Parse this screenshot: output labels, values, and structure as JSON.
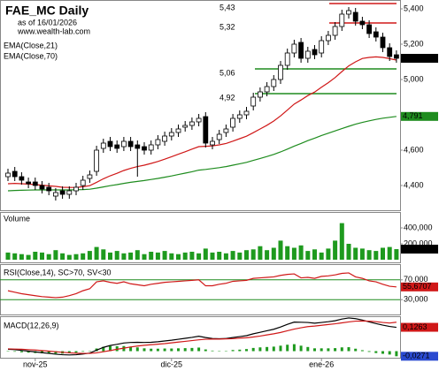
{
  "chart_data": [
    {
      "type": "candlestick",
      "title": "FAE_MC Daily",
      "subtitle": "as of 16/01/2026",
      "source": "www.wealth-lab.com",
      "categories": [
        null,
        null,
        null,
        null,
        "nov-25",
        null,
        null,
        null,
        null,
        null,
        null,
        null,
        null,
        null,
        null,
        null,
        null,
        null,
        null,
        null,
        null,
        null,
        null,
        null,
        "dic-25",
        null,
        null,
        null,
        null,
        null,
        null,
        null,
        null,
        null,
        null,
        null,
        null,
        null,
        null,
        null,
        null,
        null,
        null,
        null,
        null,
        null,
        "ene-26",
        null,
        null,
        null,
        null,
        null,
        null,
        null,
        null,
        null,
        null,
        null
      ],
      "open": [
        4450,
        4480,
        4450,
        4420,
        4420,
        4400,
        4390,
        4340,
        4370,
        4350,
        4370,
        4400,
        4440,
        4480,
        4610,
        4650,
        4630,
        4620,
        4650,
        4630,
        4620,
        4600,
        4630,
        4650,
        4680,
        4700,
        4730,
        4740,
        4760,
        4790,
        4630,
        4660,
        4700,
        4730,
        4780,
        4800,
        4850,
        4900,
        4930,
        4960,
        5000,
        5080,
        5150,
        5210,
        5120,
        5170,
        5150,
        5220,
        5250,
        5300,
        5370,
        5380,
        5330,
        5310,
        5270,
        5240,
        5180,
        5140
      ],
      "high": [
        4495,
        4505,
        4475,
        4445,
        4445,
        4425,
        4415,
        4385,
        4395,
        4395,
        4415,
        4455,
        4485,
        4625,
        4665,
        4675,
        4655,
        4675,
        4675,
        4655,
        4645,
        4655,
        4685,
        4705,
        4725,
        4745,
        4765,
        4785,
        4805,
        4815,
        4675,
        4715,
        4745,
        4805,
        4825,
        4845,
        4925,
        4955,
        4985,
        5025,
        5105,
        5175,
        5225,
        5235,
        5185,
        5195,
        5245,
        5275,
        5325,
        5395,
        5410,
        5405,
        5355,
        5335,
        5295,
        5265,
        5205,
        5165
      ],
      "low": [
        4425,
        4425,
        4405,
        4385,
        4375,
        4355,
        4345,
        4315,
        4325,
        4325,
        4345,
        4375,
        4415,
        4455,
        4585,
        4595,
        4585,
        4595,
        4595,
        4450,
        4575,
        4575,
        4605,
        4625,
        4655,
        4675,
        4705,
        4715,
        4735,
        4615,
        4605,
        4635,
        4675,
        4705,
        4755,
        4775,
        4825,
        4875,
        4905,
        4935,
        4975,
        5055,
        5125,
        5095,
        5095,
        5115,
        5125,
        5195,
        5225,
        5275,
        5345,
        5305,
        5285,
        5235,
        5215,
        5155,
        5105,
        5095
      ],
      "close": [
        4470,
        4450,
        4430,
        4410,
        4400,
        4380,
        4370,
        4360,
        4350,
        4370,
        4390,
        4430,
        4460,
        4600,
        4640,
        4620,
        4610,
        4650,
        4620,
        4610,
        4600,
        4630,
        4660,
        4680,
        4700,
        4720,
        4740,
        4760,
        4780,
        4640,
        4650,
        4690,
        4720,
        4780,
        4800,
        4820,
        4900,
        4930,
        4960,
        5000,
        5080,
        5150,
        5200,
        5120,
        5160,
        5140,
        5220,
        5250,
        5300,
        5370,
        5390,
        5330,
        5310,
        5260,
        5240,
        5180,
        5130,
        5120
      ],
      "last_close": {
        "value": 5120,
        "label": "5,120"
      },
      "ylim": [
        4260,
        5450
      ],
      "yticks": [
        {
          "value": 4400,
          "label": "4,400"
        },
        {
          "value": 4600,
          "label": "4,600"
        },
        {
          "value": 5000,
          "label": "5,000"
        },
        {
          "value": 5200,
          "label": "5,200"
        },
        {
          "value": 5400,
          "label": "5,400"
        }
      ],
      "overlays": [
        {
          "name": "EMA(Close,21)",
          "color": "#d01818",
          "values": [
            4410,
            4412,
            4410,
            4408,
            4405,
            4402,
            4398,
            4395,
            4390,
            4389,
            4389,
            4393,
            4399,
            4418,
            4438,
            4455,
            4469,
            4485,
            4497,
            4507,
            4515,
            4525,
            4536,
            4549,
            4563,
            4577,
            4591,
            4606,
            4620,
            4622,
            4624,
            4630,
            4638,
            4651,
            4665,
            4679,
            4699,
            4720,
            4741,
            4765,
            4794,
            4827,
            4861,
            4884,
            4909,
            4929,
            4956,
            4982,
            5011,
            5045,
            5077,
            5100,
            5119,
            5125,
            5128,
            5125,
            5118,
            5110
          ]
        },
        {
          "name": "EMA(Close,70)",
          "color": "#1e8c1e",
          "values": [
            4370,
            4372,
            4373,
            4374,
            4375,
            4375,
            4375,
            4375,
            4375,
            4375,
            4376,
            4377,
            4379,
            4385,
            4392,
            4399,
            4405,
            4412,
            4418,
            4423,
            4428,
            4434,
            4440,
            4447,
            4454,
            4462,
            4470,
            4478,
            4487,
            4491,
            4496,
            4501,
            4507,
            4515,
            4523,
            4531,
            4542,
            4553,
            4564,
            4576,
            4590,
            4606,
            4623,
            4638,
            4654,
            4668,
            4683,
            4696,
            4709,
            4722,
            4735,
            4747,
            4757,
            4766,
            4774,
            4781,
            4786,
            4791
          ],
          "last": {
            "value": 4791,
            "label": "4,791"
          }
        }
      ],
      "levels": [
        {
          "value": 5430,
          "label": "5,43",
          "color": "#d01818"
        },
        {
          "value": 5320,
          "label": "5,32",
          "color": "#d01818"
        },
        {
          "value": 5060,
          "label": "5,06",
          "color": "#1e8c1e"
        },
        {
          "value": 4920,
          "label": "4,92",
          "color": "#1e8c1e"
        }
      ]
    },
    {
      "type": "bar",
      "title": "Volume",
      "color": "#1e9a1e",
      "values": [
        90000,
        80000,
        70000,
        60000,
        100000,
        90000,
        70000,
        120000,
        80000,
        60000,
        70000,
        80000,
        110000,
        160000,
        130000,
        90000,
        110000,
        80000,
        90000,
        120000,
        70000,
        100000,
        90000,
        110000,
        80000,
        70000,
        90000,
        100000,
        80000,
        140000,
        90000,
        100000,
        80000,
        110000,
        90000,
        120000,
        130000,
        170000,
        120000,
        150000,
        240000,
        170000,
        150000,
        180000,
        110000,
        130000,
        90000,
        140000,
        240000,
        460000,
        200000,
        150000,
        140000,
        120000,
        110000,
        150000,
        160000,
        132891
      ],
      "last": {
        "value": 132891,
        "label": "132,891"
      },
      "ylim": [
        0,
        600000
      ],
      "yticks": [
        {
          "value": 200000,
          "label": "200,000"
        },
        {
          "value": 400000,
          "label": "400,000"
        }
      ]
    },
    {
      "type": "line",
      "title": "RSI(Close,14), SC>70, SV<30",
      "grid_color": "#1e8c1e",
      "series": [
        {
          "name": "RSI",
          "color": "#d01818",
          "values": [
            48,
            45,
            42,
            40,
            38,
            36,
            35,
            34,
            35,
            38,
            42,
            48,
            52,
            66,
            68,
            65,
            63,
            66,
            62,
            60,
            58,
            61,
            63,
            65,
            66,
            67,
            68,
            69,
            70,
            58,
            58,
            61,
            63,
            67,
            68,
            69,
            73,
            74,
            75,
            76,
            79,
            81,
            82,
            74,
            75,
            73,
            77,
            78,
            80,
            83,
            84,
            76,
            73,
            68,
            66,
            61,
            57,
            55.6707
          ],
          "last": {
            "value": 55.6707,
            "label": "55,6707"
          }
        }
      ],
      "ylim": [
        0,
        100
      ],
      "yticks": [
        {
          "value": 30,
          "label": "30,000"
        },
        {
          "value": 70,
          "label": "70,000"
        }
      ]
    },
    {
      "type": "macd",
      "title": "MACD(12,26,9)",
      "series": [
        {
          "name": "MACD",
          "color": "#000000",
          "values": [
            0.01,
            0.008,
            0.004,
            0,
            -0.004,
            -0.008,
            -0.012,
            -0.016,
            -0.019,
            -0.02,
            -0.019,
            -0.015,
            -0.01,
            0.005,
            0.02,
            0.03,
            0.036,
            0.043,
            0.046,
            0.047,
            0.046,
            0.047,
            0.05,
            0.054,
            0.058,
            0.063,
            0.068,
            0.073,
            0.079,
            0.072,
            0.067,
            0.066,
            0.067,
            0.072,
            0.077,
            0.082,
            0.092,
            0.1,
            0.108,
            0.116,
            0.128,
            0.142,
            0.154,
            0.153,
            0.152,
            0.148,
            0.152,
            0.156,
            0.161,
            0.17,
            0.176,
            0.172,
            0.165,
            0.155,
            0.146,
            0.138,
            0.131,
            0.1263
          ],
          "last": {
            "value": 0.1263,
            "label": "0,1263"
          }
        },
        {
          "name": "Signal",
          "color": "#d01818",
          "values": [
            0.012,
            0.011,
            0.01,
            0.008,
            0.006,
            0.003,
            0,
            -0.003,
            -0.006,
            -0.009,
            -0.011,
            -0.012,
            -0.012,
            -0.009,
            -0.003,
            0.003,
            0.01,
            0.016,
            0.022,
            0.027,
            0.031,
            0.034,
            0.037,
            0.04,
            0.044,
            0.048,
            0.052,
            0.056,
            0.06,
            0.063,
            0.064,
            0.064,
            0.065,
            0.066,
            0.069,
            0.071,
            0.075,
            0.08,
            0.086,
            0.092,
            0.099,
            0.108,
            0.117,
            0.124,
            0.13,
            0.133,
            0.137,
            0.141,
            0.145,
            0.15,
            0.155,
            0.159,
            0.16,
            0.159,
            0.156,
            0.152,
            0.149,
            0.1534
          ]
        }
      ],
      "histogram": {
        "name": "Histogram",
        "color": "#1e9a1e",
        "values": [
          -0.002,
          -0.003,
          -0.006,
          -0.008,
          -0.01,
          -0.011,
          -0.012,
          -0.013,
          -0.013,
          -0.011,
          -0.008,
          -0.003,
          0.002,
          0.014,
          0.023,
          0.027,
          0.026,
          0.027,
          0.024,
          0.02,
          0.015,
          0.013,
          0.013,
          0.014,
          0.014,
          0.015,
          0.016,
          0.017,
          0.019,
          0.009,
          0.003,
          0.002,
          0.002,
          0.006,
          0.008,
          0.011,
          0.017,
          0.02,
          0.022,
          0.024,
          0.029,
          0.034,
          0.037,
          0.029,
          0.022,
          0.015,
          0.015,
          0.015,
          0.016,
          0.02,
          0.021,
          0.013,
          0.005,
          -0.004,
          -0.01,
          -0.014,
          -0.018,
          -0.0271
        ],
        "last": {
          "value": -0.0271,
          "label": "-0,0271"
        }
      },
      "ylim": [
        -0.035,
        0.185
      ]
    }
  ]
}
